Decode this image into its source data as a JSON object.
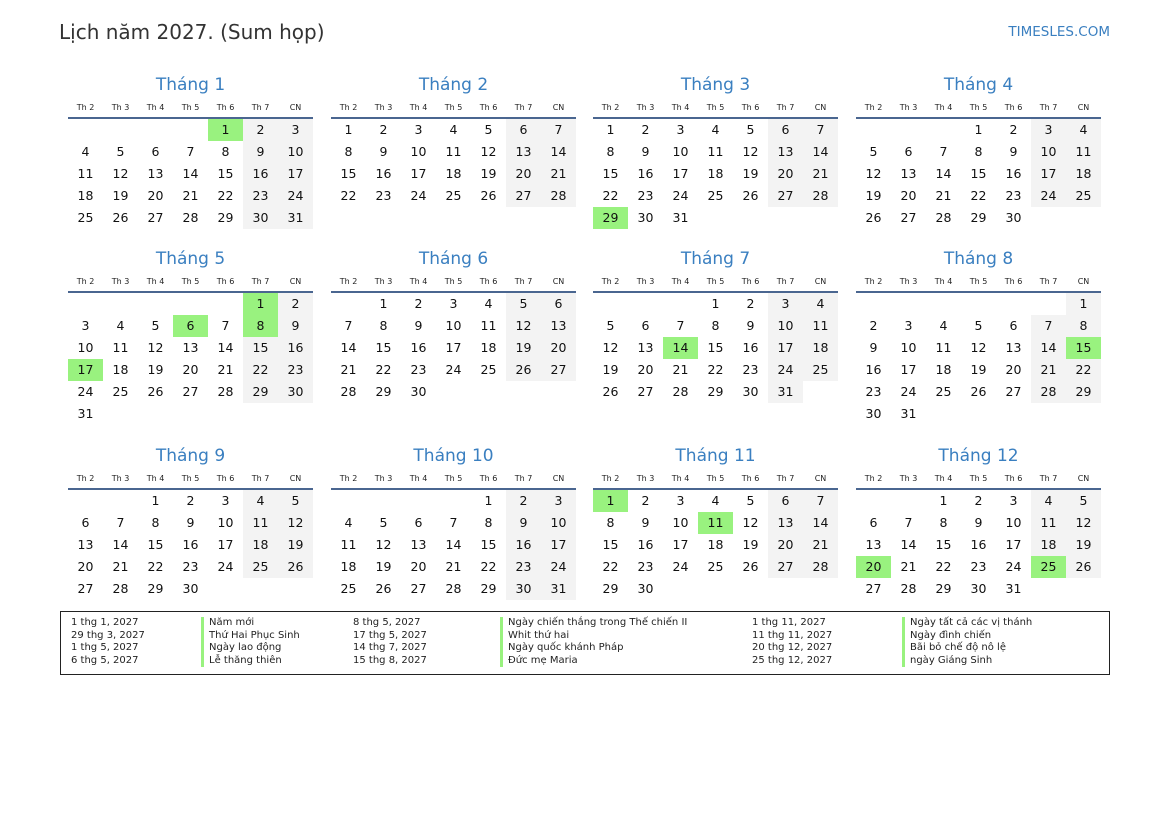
{
  "header": {
    "title": "Lịch năm 2027. (Sum họp)",
    "site": "TIMESLES.COM"
  },
  "weekdays": [
    "Th 2",
    "Th 3",
    "Th 4",
    "Th 5",
    "Th 6",
    "Th 7",
    "CN"
  ],
  "colors": {
    "accent": "#3a7fc0",
    "holiday": "#99f27f",
    "weekend": "#f3f3f3"
  },
  "months": [
    {
      "name": "Tháng 1",
      "holidays": [
        1
      ],
      "weeks": [
        [
          0,
          0,
          0,
          0,
          1,
          2,
          3
        ],
        [
          4,
          5,
          6,
          7,
          8,
          9,
          10
        ],
        [
          11,
          12,
          13,
          14,
          15,
          16,
          17
        ],
        [
          18,
          19,
          20,
          21,
          22,
          23,
          24
        ],
        [
          25,
          26,
          27,
          28,
          29,
          30,
          31
        ]
      ]
    },
    {
      "name": "Tháng 2",
      "holidays": [],
      "weeks": [
        [
          1,
          2,
          3,
          4,
          5,
          6,
          7
        ],
        [
          8,
          9,
          10,
          11,
          12,
          13,
          14
        ],
        [
          15,
          16,
          17,
          18,
          19,
          20,
          21
        ],
        [
          22,
          23,
          24,
          25,
          26,
          27,
          28
        ]
      ]
    },
    {
      "name": "Tháng 3",
      "holidays": [
        29
      ],
      "weeks": [
        [
          1,
          2,
          3,
          4,
          5,
          6,
          7
        ],
        [
          8,
          9,
          10,
          11,
          12,
          13,
          14
        ],
        [
          15,
          16,
          17,
          18,
          19,
          20,
          21
        ],
        [
          22,
          23,
          24,
          25,
          26,
          27,
          28
        ],
        [
          29,
          30,
          31,
          0,
          0,
          0,
          0
        ]
      ]
    },
    {
      "name": "Tháng 4",
      "holidays": [],
      "weeks": [
        [
          0,
          0,
          0,
          1,
          2,
          3,
          4
        ],
        [
          5,
          6,
          7,
          8,
          9,
          10,
          11
        ],
        [
          12,
          13,
          14,
          15,
          16,
          17,
          18
        ],
        [
          19,
          20,
          21,
          22,
          23,
          24,
          25
        ],
        [
          26,
          27,
          28,
          29,
          30,
          0,
          0
        ]
      ]
    },
    {
      "name": "Tháng 5",
      "holidays": [
        1,
        6,
        8,
        17
      ],
      "weeks": [
        [
          0,
          0,
          0,
          0,
          0,
          1,
          2
        ],
        [
          3,
          4,
          5,
          6,
          7,
          8,
          9
        ],
        [
          10,
          11,
          12,
          13,
          14,
          15,
          16
        ],
        [
          17,
          18,
          19,
          20,
          21,
          22,
          23
        ],
        [
          24,
          25,
          26,
          27,
          28,
          29,
          30
        ],
        [
          31,
          0,
          0,
          0,
          0,
          0,
          0
        ]
      ]
    },
    {
      "name": "Tháng 6",
      "holidays": [],
      "weeks": [
        [
          0,
          1,
          2,
          3,
          4,
          5,
          6
        ],
        [
          7,
          8,
          9,
          10,
          11,
          12,
          13
        ],
        [
          14,
          15,
          16,
          17,
          18,
          19,
          20
        ],
        [
          21,
          22,
          23,
          24,
          25,
          26,
          27
        ],
        [
          28,
          29,
          30,
          0,
          0,
          0,
          0
        ]
      ]
    },
    {
      "name": "Tháng 7",
      "holidays": [
        14
      ],
      "weeks": [
        [
          0,
          0,
          0,
          1,
          2,
          3,
          4
        ],
        [
          5,
          6,
          7,
          8,
          9,
          10,
          11
        ],
        [
          12,
          13,
          14,
          15,
          16,
          17,
          18
        ],
        [
          19,
          20,
          21,
          22,
          23,
          24,
          25
        ],
        [
          26,
          27,
          28,
          29,
          30,
          31,
          0
        ]
      ]
    },
    {
      "name": "Tháng 8",
      "holidays": [
        15
      ],
      "weeks": [
        [
          0,
          0,
          0,
          0,
          0,
          0,
          1
        ],
        [
          2,
          3,
          4,
          5,
          6,
          7,
          8
        ],
        [
          9,
          10,
          11,
          12,
          13,
          14,
          15
        ],
        [
          16,
          17,
          18,
          19,
          20,
          21,
          22
        ],
        [
          23,
          24,
          25,
          26,
          27,
          28,
          29
        ],
        [
          30,
          31,
          0,
          0,
          0,
          0,
          0
        ]
      ]
    },
    {
      "name": "Tháng 9",
      "holidays": [],
      "weeks": [
        [
          0,
          0,
          1,
          2,
          3,
          4,
          5
        ],
        [
          6,
          7,
          8,
          9,
          10,
          11,
          12
        ],
        [
          13,
          14,
          15,
          16,
          17,
          18,
          19
        ],
        [
          20,
          21,
          22,
          23,
          24,
          25,
          26
        ],
        [
          27,
          28,
          29,
          30,
          0,
          0,
          0
        ]
      ]
    },
    {
      "name": "Tháng 10",
      "holidays": [],
      "weeks": [
        [
          0,
          0,
          0,
          0,
          1,
          2,
          3
        ],
        [
          4,
          5,
          6,
          7,
          8,
          9,
          10
        ],
        [
          11,
          12,
          13,
          14,
          15,
          16,
          17
        ],
        [
          18,
          19,
          20,
          21,
          22,
          23,
          24
        ],
        [
          25,
          26,
          27,
          28,
          29,
          30,
          31
        ]
      ]
    },
    {
      "name": "Tháng 11",
      "holidays": [
        1,
        11
      ],
      "weeks": [
        [
          1,
          2,
          3,
          4,
          5,
          6,
          7
        ],
        [
          8,
          9,
          10,
          11,
          12,
          13,
          14
        ],
        [
          15,
          16,
          17,
          18,
          19,
          20,
          21
        ],
        [
          22,
          23,
          24,
          25,
          26,
          27,
          28
        ],
        [
          29,
          30,
          0,
          0,
          0,
          0,
          0
        ]
      ]
    },
    {
      "name": "Tháng 12",
      "holidays": [
        20,
        25
      ],
      "weeks": [
        [
          0,
          0,
          1,
          2,
          3,
          4,
          5
        ],
        [
          6,
          7,
          8,
          9,
          10,
          11,
          12
        ],
        [
          13,
          14,
          15,
          16,
          17,
          18,
          19
        ],
        [
          20,
          21,
          22,
          23,
          24,
          25,
          26
        ],
        [
          27,
          28,
          29,
          30,
          31,
          0,
          0
        ]
      ]
    }
  ],
  "legend": [
    [
      {
        "date": "1 thg 1, 2027",
        "name": "Năm mới"
      },
      {
        "date": "29 thg 3, 2027",
        "name": "Thứ Hai Phục Sinh"
      },
      {
        "date": "1 thg 5, 2027",
        "name": "Ngày lao động"
      },
      {
        "date": "6 thg 5, 2027",
        "name": "Lễ thăng thiên"
      }
    ],
    [
      {
        "date": "8 thg 5, 2027",
        "name": "Ngày chiến thắng trong Thế chiến II"
      },
      {
        "date": "17 thg 5, 2027",
        "name": "Whit thứ hai"
      },
      {
        "date": "14 thg 7, 2027",
        "name": "Ngày quốc khánh Pháp"
      },
      {
        "date": "15 thg 8, 2027",
        "name": "Đức mẹ Maria"
      }
    ],
    [
      {
        "date": "1 thg 11, 2027",
        "name": "Ngày tất cả các vị thánh"
      },
      {
        "date": "11 thg 11, 2027",
        "name": "Ngày đình chiến"
      },
      {
        "date": "20 thg 12, 2027",
        "name": "Bãi bỏ chế độ nô lệ"
      },
      {
        "date": "25 thg 12, 2027",
        "name": "ngày Giáng Sinh"
      }
    ]
  ]
}
